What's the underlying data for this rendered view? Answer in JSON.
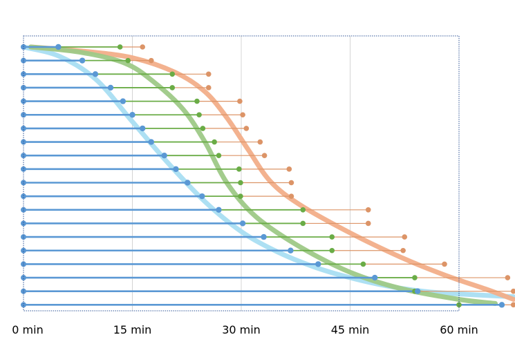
{
  "chart_data": {
    "type": "scatter",
    "title": "",
    "xlabel": "",
    "ylabel": "",
    "xlim": [
      0,
      67.5
    ],
    "x_ticks": [
      {
        "value": 0,
        "label": "0 min"
      },
      {
        "value": 15,
        "label": "15 min"
      },
      {
        "value": 30,
        "label": "30 min"
      },
      {
        "value": 45,
        "label": "45 min"
      },
      {
        "value": 60,
        "label": "60 min"
      }
    ],
    "grid": true,
    "legend": "none",
    "colors": {
      "blue": "#5a98d4",
      "green": "#6aac46",
      "orange": "#dc9467",
      "blue_trend": "#a9def2",
      "green_trend": "#9ec987",
      "orange_trend": "#f2ae89",
      "frame": "#2f5597",
      "grid": "#d4d4d4"
    },
    "rows": [
      {
        "blue": 4.8,
        "green": 13.3,
        "orange": 16.4
      },
      {
        "blue": 8.1,
        "green": 14.4,
        "orange": 17.6
      },
      {
        "blue": 9.9,
        "green": 20.5,
        "orange": 25.5
      },
      {
        "blue": 12.0,
        "green": 20.5,
        "orange": 25.5
      },
      {
        "blue": 13.7,
        "green": 23.9,
        "orange": 29.8
      },
      {
        "blue": 15.0,
        "green": 24.2,
        "orange": 30.2
      },
      {
        "blue": 16.4,
        "green": 24.7,
        "orange": 30.7
      },
      {
        "blue": 17.6,
        "green": 26.3,
        "orange": 32.6
      },
      {
        "blue": 19.4,
        "green": 26.9,
        "orange": 33.2
      },
      {
        "blue": 21.0,
        "green": 29.7,
        "orange": 36.6
      },
      {
        "blue": 22.6,
        "green": 29.9,
        "orange": 36.9
      },
      {
        "blue": 24.6,
        "green": 29.9,
        "orange": 36.9
      },
      {
        "blue": 26.9,
        "green": 38.5,
        "orange": 47.5
      },
      {
        "blue": 30.2,
        "green": 38.5,
        "orange": 47.5
      },
      {
        "blue": 33.1,
        "green": 42.5,
        "orange": 52.5
      },
      {
        "blue": 36.8,
        "green": 42.5,
        "orange": 52.3
      },
      {
        "blue": 40.6,
        "green": 46.8,
        "orange": 58.0
      },
      {
        "blue": 48.4,
        "green": 53.9,
        "orange": 66.7
      },
      {
        "blue": 54.3,
        "green": 53.9,
        "orange": 67.5
      },
      {
        "blue": 65.9,
        "green": 60.0,
        "orange": 67.5
      }
    ],
    "trend_lines": {
      "blue": [
        [
          0,
          0.0
        ],
        [
          5,
          0.7
        ],
        [
          10,
          2.4
        ],
        [
          15,
          5.5
        ],
        [
          20,
          8.6
        ],
        [
          25,
          11.4
        ],
        [
          30,
          13.6
        ],
        [
          35,
          15.1
        ],
        [
          40,
          16.2
        ],
        [
          45,
          17.0
        ],
        [
          50,
          17.6
        ],
        [
          55,
          18.0
        ],
        [
          60,
          18.2
        ],
        [
          67.5,
          18.4
        ]
      ],
      "green": [
        [
          1,
          0.0
        ],
        [
          8,
          0.4
        ],
        [
          14,
          1.2
        ],
        [
          18,
          2.6
        ],
        [
          22,
          4.6
        ],
        [
          25,
          7.0
        ],
        [
          28,
          10.0
        ],
        [
          32,
          12.5
        ],
        [
          38,
          14.7
        ],
        [
          45,
          16.6
        ],
        [
          52,
          17.8
        ],
        [
          60,
          18.6
        ],
        [
          65,
          18.9
        ]
      ],
      "orange": [
        [
          1,
          0.0
        ],
        [
          8,
          0.3
        ],
        [
          15,
          0.8
        ],
        [
          21,
          1.9
        ],
        [
          25,
          3.3
        ],
        [
          28,
          5.2
        ],
        [
          31,
          7.6
        ],
        [
          34,
          9.9
        ],
        [
          38,
          11.6
        ],
        [
          45,
          13.7
        ],
        [
          52,
          15.5
        ],
        [
          58,
          16.8
        ],
        [
          64,
          17.9
        ],
        [
          67.5,
          18.6
        ]
      ]
    }
  }
}
